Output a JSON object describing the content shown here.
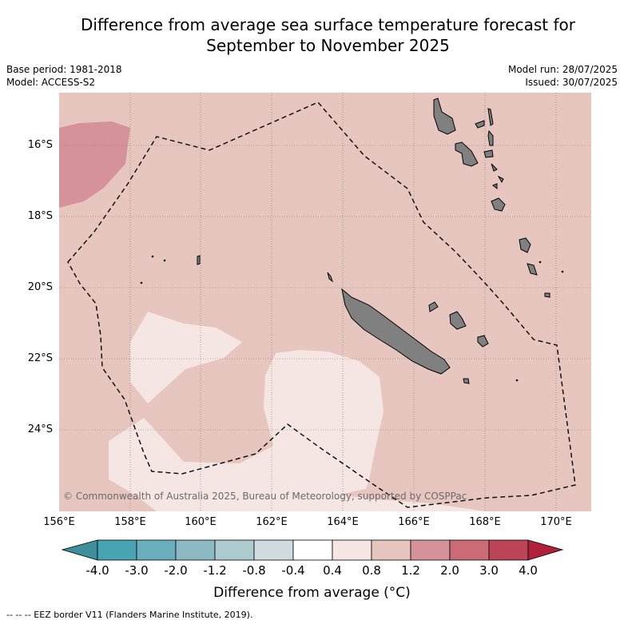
{
  "title_line1": "Difference from average sea surface temperature forecast for",
  "title_line2": "September to November 2025",
  "base_period": "Base period: 1981-2018",
  "model": "Model: ACCESS-S2",
  "model_run": "Model run: 28/07/2025",
  "issued": "Issued: 30/07/2025",
  "lat_labels": [
    "16°S",
    "18°S",
    "20°S",
    "22°S",
    "24°S"
  ],
  "lon_labels": [
    "156°E",
    "158°E",
    "160°E",
    "162°E",
    "164°E",
    "166°E",
    "168°E",
    "170°E"
  ],
  "copyright": "© Commonwealth of Australia 2025, Bureau of Meteorology, supported by COSPPac",
  "colorbar": {
    "ticks": [
      "-4.0",
      "-3.0",
      "-2.0",
      "-1.2",
      "-0.8",
      "-0.4",
      "0.4",
      "0.8",
      "1.2",
      "2.0",
      "3.0",
      "4.0"
    ],
    "colors": [
      "#3e8e9c",
      "#48a3b2",
      "#6aadbd",
      "#8db9c5",
      "#aecbd0",
      "#cfdbdf",
      "#ffffff",
      "#f5e6e4",
      "#e8c6c0",
      "#d5929a",
      "#cb6b76",
      "#bb4456",
      "#b0203a"
    ],
    "title": "Difference from average (°C)"
  },
  "footer": "-- -- -- EEZ border V11 (Flanders Marine Institute, 2019)."
}
